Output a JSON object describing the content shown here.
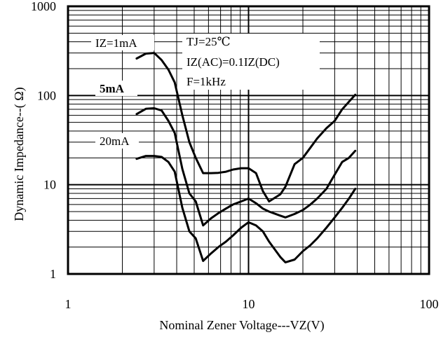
{
  "chart_data": {
    "type": "line",
    "title": "",
    "xlabel": "Nominal Zener Voltage---VZ(V)",
    "ylabel": "Dynamic Impedance--( Ω)",
    "x_scale": "log",
    "y_scale": "log",
    "xlim": [
      1,
      100
    ],
    "ylim": [
      1,
      1000
    ],
    "grid": true,
    "x_ticks": [
      {
        "value": 1,
        "label": "1"
      },
      {
        "value": 10,
        "label": "10"
      },
      {
        "value": 100,
        "label": "100"
      }
    ],
    "y_ticks": [
      {
        "value": 1,
        "label": "1"
      },
      {
        "value": 10,
        "label": "10"
      },
      {
        "value": 100,
        "label": "100"
      },
      {
        "value": 1000,
        "label": "1000"
      }
    ],
    "conditions": [
      "TJ=25℃",
      "IZ(AC)=0.1IZ(DC)",
      "F=1kHz"
    ],
    "series": [
      {
        "name": "IZ=1mA",
        "x": [
          2.4,
          2.7,
          3.0,
          3.3,
          3.6,
          3.9,
          4.3,
          4.7,
          5.1,
          5.6,
          6.2,
          6.8,
          7.5,
          8.2,
          9.1,
          10,
          11,
          12,
          13,
          15,
          16,
          18,
          20,
          22,
          24,
          27,
          30,
          33,
          36,
          39
        ],
        "y": [
          260,
          295,
          300,
          250,
          195,
          140,
          60,
          30,
          20,
          13.5,
          13.5,
          13.6,
          14,
          14.8,
          15.3,
          15.3,
          13.5,
          8.5,
          6.5,
          7.8,
          9.5,
          17,
          20,
          26,
          33,
          43,
          52,
          70,
          85,
          102
        ]
      },
      {
        "name": "5mA",
        "x": [
          2.4,
          2.7,
          3.0,
          3.3,
          3.6,
          3.9,
          4.3,
          4.7,
          5.1,
          5.6,
          6.2,
          6.8,
          7.5,
          8.2,
          9.1,
          10,
          11,
          12,
          13,
          15,
          16,
          18,
          20,
          22,
          24,
          27,
          30,
          33,
          36,
          39
        ],
        "y": [
          62,
          71,
          72,
          68,
          52,
          38,
          15,
          8,
          6.5,
          3.5,
          4.2,
          4.8,
          5.4,
          6,
          6.5,
          7,
          6.2,
          5.4,
          5,
          4.5,
          4.3,
          4.7,
          5.2,
          6,
          7,
          9,
          13,
          18,
          20,
          24
        ]
      },
      {
        "name": "20mA",
        "x": [
          2.4,
          2.7,
          3.0,
          3.3,
          3.6,
          3.9,
          4.3,
          4.7,
          5.1,
          5.6,
          6.2,
          6.8,
          7.5,
          8.2,
          9.1,
          10,
          11,
          12,
          13,
          15,
          16,
          18,
          20,
          22,
          24,
          27,
          30,
          33,
          36,
          39
        ],
        "y": [
          19.5,
          21,
          21,
          20.5,
          18,
          14,
          5.5,
          3,
          2.5,
          1.4,
          1.7,
          2,
          2.3,
          2.7,
          3.3,
          3.8,
          3.5,
          3,
          2.3,
          1.55,
          1.35,
          1.45,
          1.8,
          2.1,
          2.5,
          3.3,
          4.3,
          5.5,
          7,
          9
        ]
      }
    ]
  }
}
